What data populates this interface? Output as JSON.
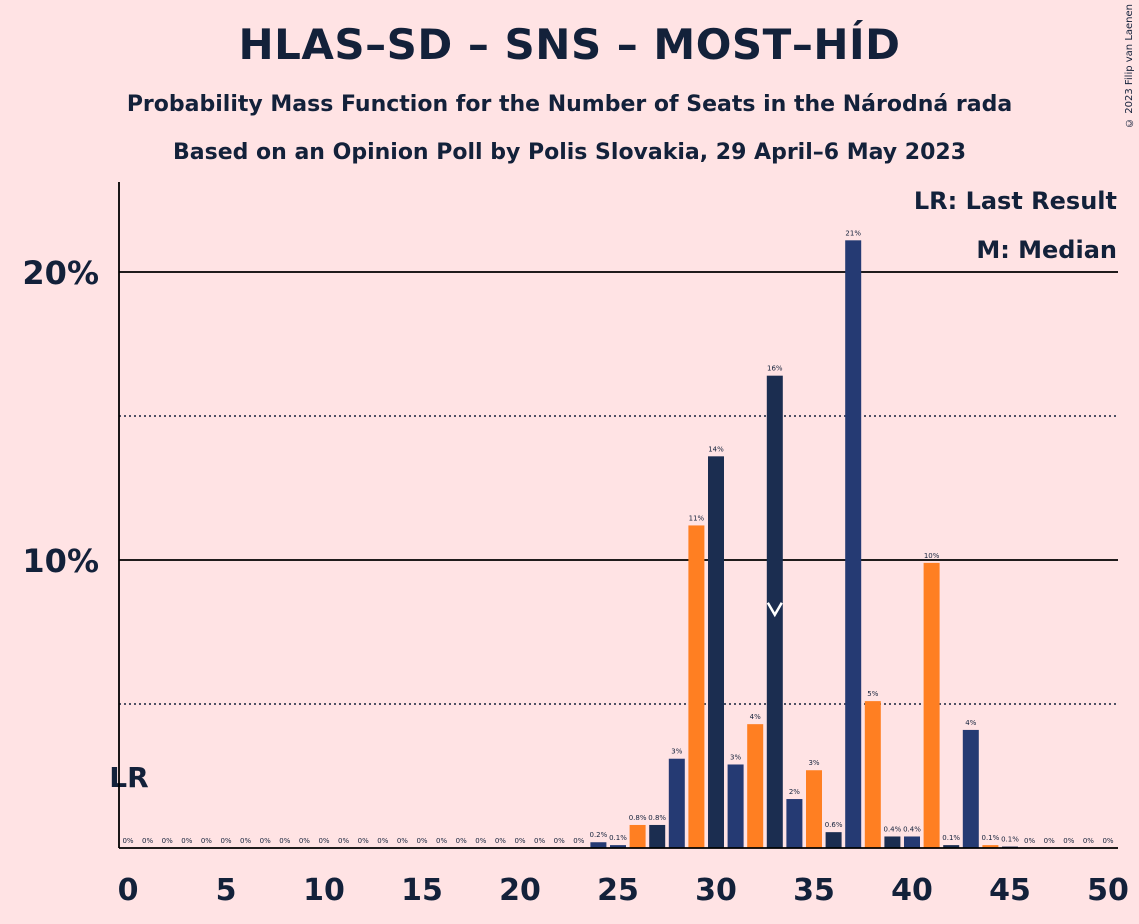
{
  "title": "HLAS–SD – SNS – MOST–HÍD",
  "subtitle": "Probability Mass Function for the Number of Seats in the Národná rada",
  "subtitle2": "Based on an Opinion Poll by Polis Slovakia, 29 April–6 May 2023",
  "copyright": "© 2023 Filip van Laenen",
  "colors": {
    "background": "#FFE3E4",
    "dark": "#1B2D50",
    "blue": "#253A73",
    "orange": "#FF7F22",
    "text": "#13213A"
  },
  "chart_data": {
    "type": "bar",
    "xlabel": "",
    "ylabel": "",
    "xlim": [
      0,
      50
    ],
    "ylim": [
      0,
      22.5
    ],
    "x_ticks": [
      0,
      5,
      10,
      15,
      20,
      25,
      30,
      35,
      40,
      45,
      50
    ],
    "y_ticks": [
      {
        "value": 10,
        "label": "10%"
      },
      {
        "value": 20,
        "label": "20%"
      }
    ],
    "dotted_gridlines": [
      5,
      15
    ],
    "legend": [
      "LR: Last Result",
      "M: Median"
    ],
    "last_result": {
      "seat": 0,
      "label": "LR"
    },
    "median": {
      "seat": 33
    },
    "bars": [
      {
        "seat": 0,
        "value": 0,
        "label": "0%",
        "color": "#253A73"
      },
      {
        "seat": 1,
        "value": 0,
        "label": "0%",
        "color": "#253A73"
      },
      {
        "seat": 2,
        "value": 0,
        "label": "0%",
        "color": "#253A73"
      },
      {
        "seat": 3,
        "value": 0,
        "label": "0%",
        "color": "#253A73"
      },
      {
        "seat": 4,
        "value": 0,
        "label": "0%",
        "color": "#253A73"
      },
      {
        "seat": 5,
        "value": 0,
        "label": "0%",
        "color": "#253A73"
      },
      {
        "seat": 6,
        "value": 0,
        "label": "0%",
        "color": "#253A73"
      },
      {
        "seat": 7,
        "value": 0,
        "label": "0%",
        "color": "#253A73"
      },
      {
        "seat": 8,
        "value": 0,
        "label": "0%",
        "color": "#253A73"
      },
      {
        "seat": 9,
        "value": 0,
        "label": "0%",
        "color": "#253A73"
      },
      {
        "seat": 10,
        "value": 0,
        "label": "0%",
        "color": "#253A73"
      },
      {
        "seat": 11,
        "value": 0,
        "label": "0%",
        "color": "#253A73"
      },
      {
        "seat": 12,
        "value": 0,
        "label": "0%",
        "color": "#253A73"
      },
      {
        "seat": 13,
        "value": 0,
        "label": "0%",
        "color": "#253A73"
      },
      {
        "seat": 14,
        "value": 0,
        "label": "0%",
        "color": "#253A73"
      },
      {
        "seat": 15,
        "value": 0,
        "label": "0%",
        "color": "#253A73"
      },
      {
        "seat": 16,
        "value": 0,
        "label": "0%",
        "color": "#253A73"
      },
      {
        "seat": 17,
        "value": 0,
        "label": "0%",
        "color": "#253A73"
      },
      {
        "seat": 18,
        "value": 0,
        "label": "0%",
        "color": "#253A73"
      },
      {
        "seat": 19,
        "value": 0,
        "label": "0%",
        "color": "#253A73"
      },
      {
        "seat": 20,
        "value": 0,
        "label": "0%",
        "color": "#253A73"
      },
      {
        "seat": 21,
        "value": 0,
        "label": "0%",
        "color": "#253A73"
      },
      {
        "seat": 22,
        "value": 0,
        "label": "0%",
        "color": "#253A73"
      },
      {
        "seat": 23,
        "value": 0,
        "label": "0%",
        "color": "#253A73"
      },
      {
        "seat": 24,
        "value": 0.2,
        "label": "0.2%",
        "color": "#253A73"
      },
      {
        "seat": 25,
        "value": 0.1,
        "label": "0.1%",
        "color": "#253A73"
      },
      {
        "seat": 26,
        "value": 0.8,
        "label": "0.8%",
        "color": "#FF7F22"
      },
      {
        "seat": 27,
        "value": 0.8,
        "label": "0.8%",
        "color": "#1B2D50"
      },
      {
        "seat": 28,
        "value": 3.1,
        "label": "3%",
        "color": "#253A73"
      },
      {
        "seat": 29,
        "value": 11.2,
        "label": "11%",
        "color": "#FF7F22"
      },
      {
        "seat": 30,
        "value": 13.6,
        "label": "14%",
        "color": "#1B2D50"
      },
      {
        "seat": 31,
        "value": 2.9,
        "label": "3%",
        "color": "#253A73"
      },
      {
        "seat": 32,
        "value": 4.3,
        "label": "4%",
        "color": "#FF7F22"
      },
      {
        "seat": 33,
        "value": 16.4,
        "label": "16%",
        "color": "#1B2D50"
      },
      {
        "seat": 34,
        "value": 1.7,
        "label": "2%",
        "color": "#253A73"
      },
      {
        "seat": 35,
        "value": 2.7,
        "label": "3%",
        "color": "#FF7F22"
      },
      {
        "seat": 36,
        "value": 0.55,
        "label": "0.6%",
        "color": "#1B2D50"
      },
      {
        "seat": 37,
        "value": 21.1,
        "label": "21%",
        "color": "#253A73"
      },
      {
        "seat": 38,
        "value": 5.1,
        "label": "5%",
        "color": "#FF7F22"
      },
      {
        "seat": 39,
        "value": 0.4,
        "label": "0.4%",
        "color": "#1B2D50"
      },
      {
        "seat": 40,
        "value": 0.4,
        "label": "0.4%",
        "color": "#253A73"
      },
      {
        "seat": 41,
        "value": 9.9,
        "label": "10%",
        "color": "#FF7F22"
      },
      {
        "seat": 42,
        "value": 0.1,
        "label": "0.1%",
        "color": "#1B2D50"
      },
      {
        "seat": 43,
        "value": 4.1,
        "label": "4%",
        "color": "#253A73"
      },
      {
        "seat": 44,
        "value": 0.1,
        "label": "0.1%",
        "color": "#FF7F22"
      },
      {
        "seat": 45,
        "value": 0.05,
        "label": "0.1%",
        "color": "#1B2D50"
      },
      {
        "seat": 46,
        "value": 0,
        "label": "0%",
        "color": "#253A73"
      },
      {
        "seat": 47,
        "value": 0,
        "label": "0%",
        "color": "#253A73"
      },
      {
        "seat": 48,
        "value": 0,
        "label": "0%",
        "color": "#253A73"
      },
      {
        "seat": 49,
        "value": 0,
        "label": "0%",
        "color": "#253A73"
      },
      {
        "seat": 50,
        "value": 0,
        "label": "0%",
        "color": "#253A73"
      }
    ]
  }
}
